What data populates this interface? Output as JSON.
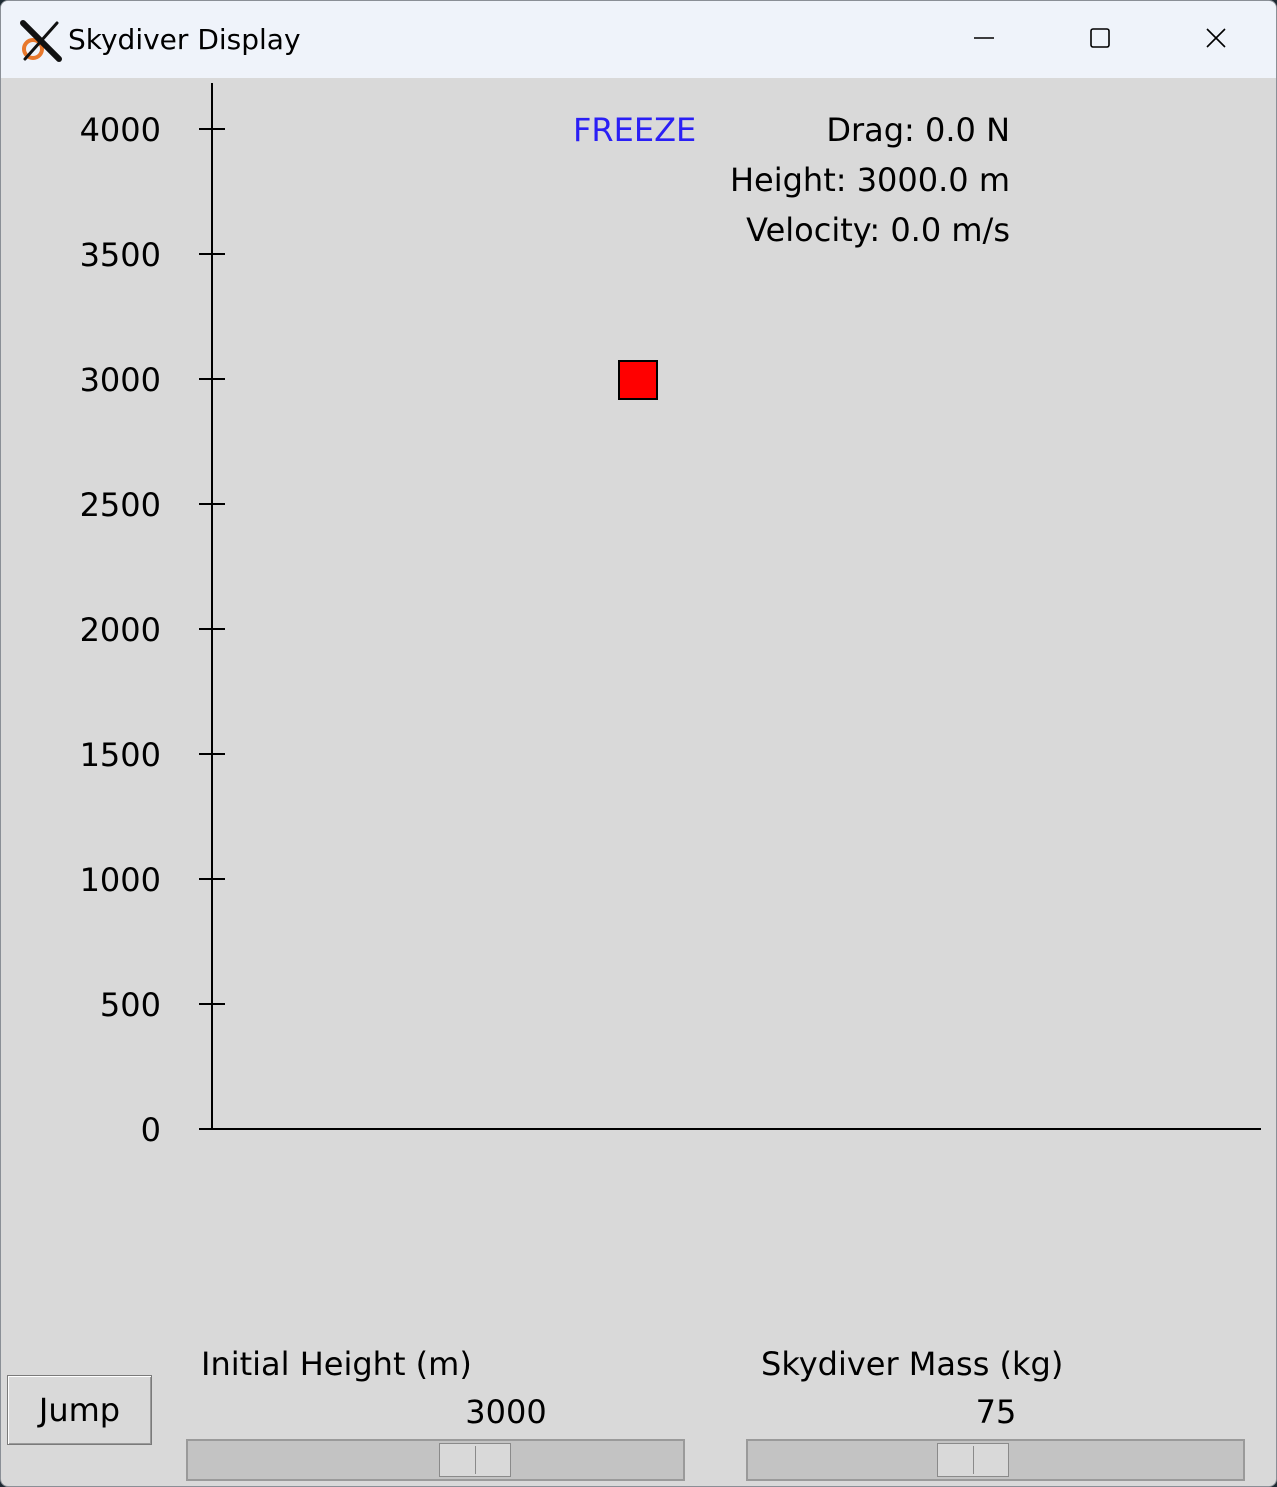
{
  "window": {
    "title": "Skydiver Display",
    "icon": "x11-icon"
  },
  "titlebar_buttons": [
    "minimize-icon",
    "maximize-icon",
    "close-icon"
  ],
  "chart_data": {
    "type": "scatter",
    "y_ticks": [
      "4000",
      "3500",
      "3000",
      "2500",
      "2000",
      "1500",
      "1000",
      "500",
      "0"
    ],
    "ylim": [
      0,
      4000
    ],
    "points": [
      {
        "y": 3000,
        "color": "#ff0000"
      }
    ]
  },
  "status": {
    "freeze": "FREEZE",
    "freeze_color": "#2a1ff5",
    "drag": "Drag: 0.0 N",
    "height": "Height: 3000.0 m",
    "velocity": "Velocity: 0.0 m/s"
  },
  "controls": {
    "jump_label": "Jump",
    "height_slider": {
      "label": "Initial Height (m)",
      "value": "3000",
      "fraction": 0.6
    },
    "mass_slider": {
      "label": "Skydiver Mass (kg)",
      "value": "75",
      "fraction": 0.45
    }
  }
}
